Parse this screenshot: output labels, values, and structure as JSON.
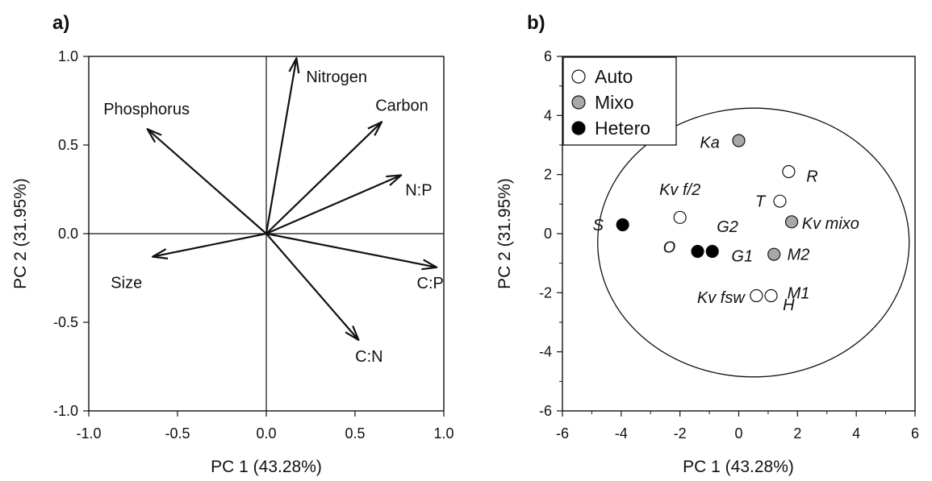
{
  "chart_data": [
    {
      "panel_label": "a)",
      "type": "scatter",
      "subtype": "biplot-loadings",
      "xlabel": "PC 1 (43.28%)",
      "ylabel": "PC 2 (31.95%)",
      "xlim": [
        -1.0,
        1.0
      ],
      "ylim": [
        -1.0,
        1.0
      ],
      "xticks": [
        -1.0,
        -0.5,
        0.0,
        0.5,
        1.0
      ],
      "yticks": [
        -1.0,
        -0.5,
        0.0,
        0.5,
        1.0
      ],
      "xtick_labels": [
        "-1.0",
        "-0.5",
        "0.0",
        "0.5",
        "1.0"
      ],
      "ytick_labels": [
        "-1.0",
        "-0.5",
        "0.0",
        "0.5",
        "1.0"
      ],
      "zero_lines": true,
      "grid": false,
      "vectors": [
        {
          "name": "Nitrogen",
          "x": 0.17,
          "y": 0.99,
          "label_anchor": "start"
        },
        {
          "name": "Carbon",
          "x": 0.65,
          "y": 0.63,
          "label_anchor": "middle"
        },
        {
          "name": "Phosphorus",
          "x": -0.67,
          "y": 0.59,
          "label_anchor": "middle"
        },
        {
          "name": "N:P",
          "x": 0.76,
          "y": 0.33,
          "label_anchor": "start"
        },
        {
          "name": "Size",
          "x": -0.64,
          "y": -0.13,
          "label_anchor": "end"
        },
        {
          "name": "C:P",
          "x": 0.96,
          "y": -0.19,
          "label_anchor": "middle"
        },
        {
          "name": "C:N",
          "x": 0.52,
          "y": -0.6,
          "label_anchor": "middle"
        }
      ]
    },
    {
      "panel_label": "b)",
      "type": "scatter",
      "xlabel": "PC 1 (43.28%)",
      "ylabel": "PC 2 (31.95%)",
      "xlim": [
        -6,
        6
      ],
      "ylim": [
        -6,
        6
      ],
      "xticks": [
        -6,
        -4,
        -2,
        0,
        2,
        4,
        6
      ],
      "yticks": [
        -6,
        -4,
        -2,
        0,
        2,
        4,
        6
      ],
      "xtick_labels": [
        "-6",
        "-4",
        "-2",
        "0",
        "2",
        "4",
        "6"
      ],
      "ytick_labels": [
        "-6",
        "-4",
        "-2",
        "0",
        "2",
        "4",
        "6"
      ],
      "grid": false,
      "legend_position": "top-left",
      "ellipse": {
        "cx": 0.5,
        "cy": -0.3,
        "rx": 5.3,
        "ry": 4.55
      },
      "groups": [
        {
          "name": "Auto",
          "color": "#ffffff"
        },
        {
          "name": "Mixo",
          "color": "#a8a8a8"
        },
        {
          "name": "Hetero",
          "color": "#000000"
        }
      ],
      "points": [
        {
          "label": "Ka",
          "group": "Mixo",
          "x": 0.0,
          "y": 3.15,
          "label_dx": -0.65,
          "label_dy": -0.05,
          "anchor": "end"
        },
        {
          "label": "R",
          "group": "Auto",
          "x": 1.7,
          "y": 2.1,
          "label_dx": 0.6,
          "label_dy": -0.15,
          "anchor": "start"
        },
        {
          "label": "T",
          "group": "Auto",
          "x": 1.4,
          "y": 1.1,
          "label_dx": -0.5,
          "label_dy": 0.0,
          "anchor": "end"
        },
        {
          "label": "Kv mixo",
          "group": "Mixo",
          "x": 1.8,
          "y": 0.4,
          "label_dx": 0.35,
          "label_dy": -0.05,
          "anchor": "start"
        },
        {
          "label": "Kv f/2",
          "group": "Auto",
          "x": -2.0,
          "y": 0.55,
          "label_dx": 0.0,
          "label_dy": 0.95,
          "anchor": "middle"
        },
        {
          "label": "S",
          "group": "Hetero",
          "x": -3.95,
          "y": 0.3,
          "label_dx": -0.65,
          "label_dy": 0.0,
          "anchor": "end"
        },
        {
          "label": "O",
          "group": "Hetero",
          "x": -1.4,
          "y": -0.6,
          "label_dx": -0.75,
          "label_dy": 0.15,
          "anchor": "end"
        },
        {
          "label": "G2",
          "group": "Hetero",
          "x": -0.9,
          "y": -0.6,
          "label_dx": 0.15,
          "label_dy": 0.85,
          "anchor": "start"
        },
        {
          "label": "G1",
          "group": "Hetero",
          "x": -0.9,
          "y": -0.6,
          "label_dx": 0.65,
          "label_dy": -0.15,
          "anchor": "start"
        },
        {
          "label": "M2",
          "group": "Mixo",
          "x": 1.2,
          "y": -0.7,
          "label_dx": 0.45,
          "label_dy": 0.0,
          "anchor": "start"
        },
        {
          "label": "M1",
          "group": "Mixo",
          "x": 1.2,
          "y": -0.7,
          "label_dx": 0.45,
          "label_dy": -1.3,
          "anchor": "start"
        },
        {
          "label": "Kv fsw",
          "group": "Auto",
          "x": 0.6,
          "y": -2.1,
          "label_dx": -0.4,
          "label_dy": -0.05,
          "anchor": "end"
        },
        {
          "label": "H",
          "group": "Auto",
          "x": 1.1,
          "y": -2.1,
          "label_dx": 0.4,
          "label_dy": -0.3,
          "anchor": "start"
        }
      ]
    }
  ]
}
